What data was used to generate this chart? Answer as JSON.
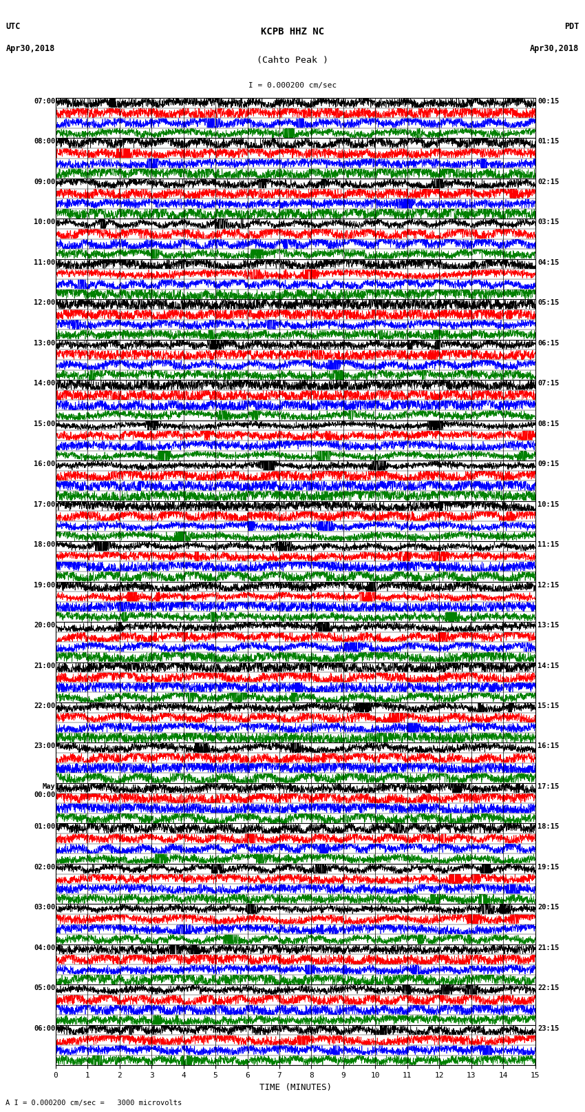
{
  "title_line1": "KCPB HHZ NC",
  "title_line2": "(Cahto Peak )",
  "scale_label": "I = 0.000200 cm/sec",
  "footer_label": "A I = 0.000200 cm/sec =   3000 microvolts",
  "xlabel": "TIME (MINUTES)",
  "left_times": [
    "07:00",
    "08:00",
    "09:00",
    "10:00",
    "11:00",
    "12:00",
    "13:00",
    "14:00",
    "15:00",
    "16:00",
    "17:00",
    "18:00",
    "19:00",
    "20:00",
    "21:00",
    "22:00",
    "23:00",
    "May\n00:00",
    "01:00",
    "02:00",
    "03:00",
    "04:00",
    "05:00",
    "06:00"
  ],
  "right_times": [
    "00:15",
    "01:15",
    "02:15",
    "03:15",
    "04:15",
    "05:15",
    "06:15",
    "07:15",
    "08:15",
    "09:15",
    "10:15",
    "11:15",
    "12:15",
    "13:15",
    "14:15",
    "15:15",
    "16:15",
    "17:15",
    "18:15",
    "19:15",
    "20:15",
    "21:15",
    "22:15",
    "23:15"
  ],
  "n_rows": 24,
  "traces_per_row": 4,
  "colors": [
    "black",
    "red",
    "blue",
    "green"
  ],
  "bg_color": "white",
  "line_width": 0.5,
  "fig_width": 8.5,
  "fig_height": 16.13,
  "dpi": 100,
  "x_min": 0,
  "x_max": 15,
  "x_ticks": [
    0,
    1,
    2,
    3,
    4,
    5,
    6,
    7,
    8,
    9,
    10,
    11,
    12,
    13,
    14,
    15
  ],
  "noise_seed": 42,
  "samples_per_trace": 3000
}
